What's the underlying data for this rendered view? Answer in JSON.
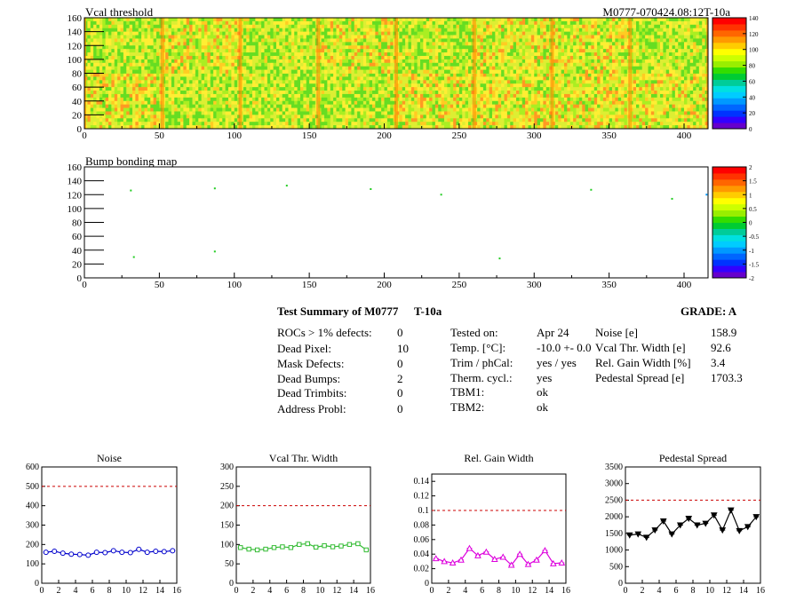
{
  "header": {
    "right_label": "M0777-070424.08:12T-10a"
  },
  "maps": [
    {
      "id": "vcal",
      "title": "Vcal threshold",
      "xlim": [
        0,
        416
      ],
      "ylim": [
        0,
        160
      ],
      "xticks": [
        0,
        50,
        100,
        150,
        200,
        250,
        300,
        350,
        400
      ],
      "yticks": [
        0,
        20,
        40,
        60,
        80,
        100,
        120,
        140,
        160
      ],
      "zlim": [
        0,
        140
      ],
      "zticks": [
        0,
        20,
        40,
        60,
        80,
        100,
        120,
        140
      ]
    },
    {
      "id": "bump",
      "title": "Bump bonding map",
      "xlim": [
        0,
        416
      ],
      "ylim": [
        0,
        160
      ],
      "xticks": [
        0,
        50,
        100,
        150,
        200,
        250,
        300,
        350,
        400
      ],
      "yticks": [
        0,
        20,
        40,
        60,
        80,
        100,
        120,
        140,
        160
      ],
      "zlim": [
        -2,
        2
      ],
      "zticks": [
        -2,
        -1.5,
        -1,
        -0.5,
        0,
        0.5,
        1,
        1.5,
        2
      ],
      "points": [
        [
          31,
          126
        ],
        [
          87,
          129
        ],
        [
          135,
          133
        ],
        [
          191,
          128
        ],
        [
          238,
          120
        ],
        [
          338,
          127
        ],
        [
          392,
          114
        ],
        [
          415,
          120
        ],
        [
          33,
          30
        ],
        [
          87,
          38
        ],
        [
          277,
          28
        ]
      ]
    }
  ],
  "summary": {
    "title": "Test Summary of M0777",
    "subtitle": "T-10a",
    "grade": "GRADE:  A",
    "left": [
      {
        "label": "ROCs > 1% defects:",
        "value": "0"
      },
      {
        "label": "Dead Pixel:",
        "value": "10"
      },
      {
        "label": "Mask Defects:",
        "value": "0"
      },
      {
        "label": "Dead Bumps:",
        "value": "2"
      },
      {
        "label": "Dead Trimbits:",
        "value": "0"
      },
      {
        "label": "Address Probl:",
        "value": "0"
      }
    ],
    "middle": [
      {
        "label": "Tested on:",
        "value": "Apr 24"
      },
      {
        "label": "Temp. [°C]:",
        "value": "-10.0 +- 0.0"
      },
      {
        "label": "Trim / phCal:",
        "value": "yes / yes"
      },
      {
        "label": "Therm. cycl.:",
        "value": "yes"
      },
      {
        "label": "TBM1:",
        "value": "ok"
      },
      {
        "label": "TBM2:",
        "value": "ok"
      }
    ],
    "right": [
      {
        "label": "Noise [e]",
        "value": "158.9"
      },
      {
        "label": "Vcal Thr. Width [e]",
        "value": "92.6"
      },
      {
        "label": "Rel. Gain Width [%]",
        "value": "3.4"
      },
      {
        "label": "Pedestal Spread [e]",
        "value": "1703.3"
      }
    ]
  },
  "chart_data": [
    {
      "type": "line",
      "title": "Noise",
      "color": "#0000cc",
      "marker": "circle",
      "x": [
        0,
        1,
        2,
        3,
        4,
        5,
        6,
        7,
        8,
        9,
        10,
        11,
        12,
        13,
        14,
        15
      ],
      "values": [
        160,
        165,
        155,
        150,
        148,
        145,
        160,
        158,
        168,
        160,
        158,
        175,
        160,
        165,
        163,
        168
      ],
      "threshold": 500,
      "xlim": [
        0,
        16
      ],
      "ylim": [
        0,
        600
      ],
      "xticks": [
        0,
        2,
        4,
        6,
        8,
        10,
        12,
        14,
        16
      ],
      "yticks": [
        0,
        100,
        200,
        300,
        400,
        500,
        600
      ]
    },
    {
      "type": "line",
      "title": "Vcal Thr. Width",
      "color": "#33bb33",
      "marker": "square",
      "x": [
        0,
        1,
        2,
        3,
        4,
        5,
        6,
        7,
        8,
        9,
        10,
        11,
        12,
        13,
        14,
        15
      ],
      "values": [
        92,
        88,
        86,
        88,
        92,
        94,
        92,
        100,
        102,
        93,
        97,
        94,
        96,
        100,
        102,
        86
      ],
      "threshold": 200,
      "xlim": [
        0,
        16
      ],
      "ylim": [
        0,
        300
      ],
      "xticks": [
        0,
        2,
        4,
        6,
        8,
        10,
        12,
        14,
        16
      ],
      "yticks": [
        0,
        50,
        100,
        150,
        200,
        250,
        300
      ]
    },
    {
      "type": "line",
      "title": "Rel. Gain Width",
      "color": "#dd00dd",
      "marker": "triangle",
      "x": [
        0,
        1,
        2,
        3,
        4,
        5,
        6,
        7,
        8,
        9,
        10,
        11,
        12,
        13,
        14,
        15
      ],
      "values": [
        0.034,
        0.03,
        0.028,
        0.032,
        0.048,
        0.038,
        0.043,
        0.033,
        0.036,
        0.025,
        0.04,
        0.026,
        0.032,
        0.045,
        0.027,
        0.028
      ],
      "threshold": 0.1,
      "xlim": [
        0,
        16
      ],
      "ylim": [
        0,
        0.15
      ],
      "xticks": [
        0,
        2,
        4,
        6,
        8,
        10,
        12,
        14,
        16
      ],
      "yticks": [
        0,
        0.02,
        0.04,
        0.06,
        0.08,
        0.1,
        0.12,
        0.14
      ]
    },
    {
      "type": "line",
      "title": "Pedestal Spread",
      "color": "#000000",
      "marker": "triangle-down",
      "x": [
        0,
        1,
        2,
        3,
        4,
        5,
        6,
        7,
        8,
        9,
        10,
        11,
        12,
        13,
        14,
        15
      ],
      "values": [
        1450,
        1480,
        1380,
        1600,
        1870,
        1480,
        1750,
        1950,
        1750,
        1800,
        2050,
        1600,
        2200,
        1580,
        1700,
        2000
      ],
      "threshold": 2500,
      "xlim": [
        0,
        16
      ],
      "ylim": [
        0,
        3500
      ],
      "xticks": [
        0,
        2,
        4,
        6,
        8,
        10,
        12,
        14,
        16
      ],
      "yticks": [
        0,
        500,
        1000,
        1500,
        2000,
        2500,
        3000,
        3500
      ]
    }
  ]
}
